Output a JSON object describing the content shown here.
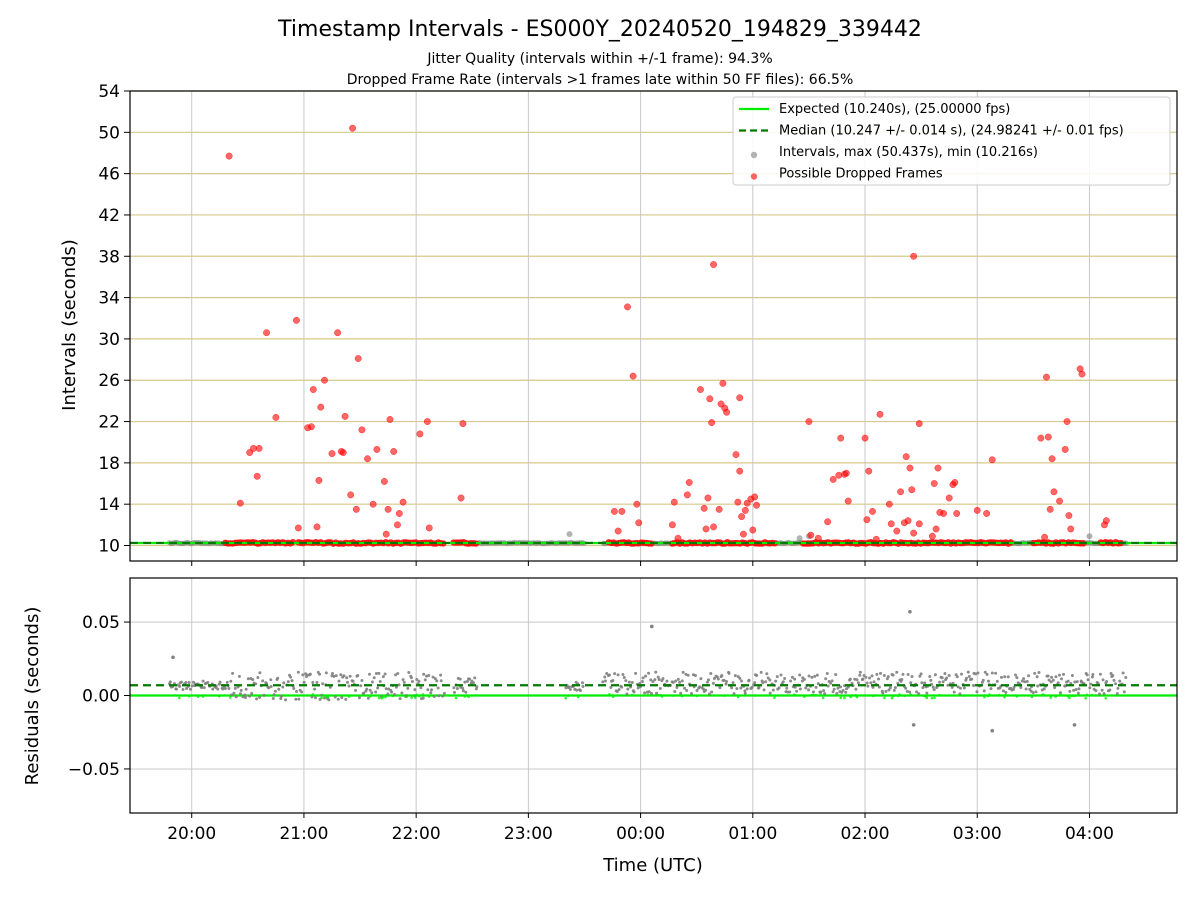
{
  "title": "Timestamp Intervals - ES000Y_20240520_194829_339442",
  "subtitle_1": "Jitter Quality (intervals within +/-1 frame): 94.3%",
  "subtitle_2": "Dropped Frame Rate (intervals >1 frames late within 50 FF files): 66.5%",
  "colors": {
    "expected": "#00ee00",
    "median": "#007a00",
    "intervals": "#808080",
    "dropped": "#ff0000",
    "hgrid_top": "#d8c88a",
    "grid": "#c8c8c8"
  },
  "chart_data": [
    {
      "type": "scatter",
      "panel": "intervals",
      "ylabel": "Intervals (seconds)",
      "xlabel": "",
      "ylim": [
        8.5,
        54
      ],
      "yticks": [
        "10",
        "14",
        "18",
        "22",
        "26",
        "30",
        "34",
        "38",
        "42",
        "46",
        "50",
        "54"
      ],
      "xticks": [
        "20:00",
        "21:00",
        "22:00",
        "23:00",
        "00:00",
        "01:00",
        "02:00",
        "03:00",
        "04:00"
      ],
      "xlim_hours": [
        19.45,
        28.78
      ],
      "grid": "horizontal (tan) and vertical (grey)",
      "legend_position": "top-right",
      "legend": [
        "Expected (10.240s), (25.00000 fps)",
        "Median (10.247 +/- 0.014 s), (24.98241 +/- 0.01 fps)",
        "Intervals, max (50.437s), min (10.216s)",
        "Possible Dropped Frames"
      ],
      "series": [
        {
          "name": "Expected (10.240s), (25.00000 fps)",
          "kind": "hline",
          "value": 10.24
        },
        {
          "name": "Median (10.247 +/- 0.014 s), (24.98241 +/- 0.01 fps)",
          "kind": "hline-dashed",
          "value": 10.247
        },
        {
          "name": "Intervals, max (50.437s), min (10.216s)",
          "kind": "baseline-scatter",
          "segments": [
            {
              "from": "19:48",
              "to": "20:20"
            },
            {
              "from": "22:30",
              "to": "23:30"
            },
            {
              "from": "23:40",
              "to": "04:20"
            }
          ],
          "extra_points": [
            {
              "t": "23:22",
              "y": 11.1
            },
            {
              "t": "01:25",
              "y": 10.7
            },
            {
              "t": "01:30",
              "y": 10.9
            },
            {
              "t": "04:00",
              "y": 10.9
            }
          ]
        },
        {
          "name": "Possible Dropped Frames",
          "kind": "scatter",
          "baseline_segments": [
            {
              "from": "20:18",
              "to": "20:55",
              "y": 10.25
            },
            {
              "from": "20:57",
              "to": "22:15",
              "y": 10.25
            },
            {
              "from": "22:20",
              "to": "22:33",
              "y": 10.25
            },
            {
              "from": "23:43",
              "to": "00:06",
              "y": 10.25
            },
            {
              "from": "00:17",
              "to": "01:12",
              "y": 10.25
            },
            {
              "from": "01:27",
              "to": "03:18",
              "y": 10.25
            },
            {
              "from": "03:30",
              "to": "03:58",
              "y": 10.25
            },
            {
              "from": "04:06",
              "to": "04:18",
              "y": 10.25
            }
          ],
          "points": [
            {
              "t": "20:20",
              "y": 47.7
            },
            {
              "t": "20:26",
              "y": 14.1
            },
            {
              "t": "20:31",
              "y": 19.0
            },
            {
              "t": "20:33",
              "y": 19.4
            },
            {
              "t": "20:35",
              "y": 16.7
            },
            {
              "t": "20:36",
              "y": 19.4
            },
            {
              "t": "20:40",
              "y": 30.6
            },
            {
              "t": "20:45",
              "y": 22.4
            },
            {
              "t": "20:56",
              "y": 31.8
            },
            {
              "t": "20:57",
              "y": 11.7
            },
            {
              "t": "21:02",
              "y": 21.4
            },
            {
              "t": "21:04",
              "y": 21.5
            },
            {
              "t": "21:05",
              "y": 25.1
            },
            {
              "t": "21:07",
              "y": 11.8
            },
            {
              "t": "21:08",
              "y": 16.3
            },
            {
              "t": "21:09",
              "y": 23.4
            },
            {
              "t": "21:11",
              "y": 26.0
            },
            {
              "t": "21:15",
              "y": 18.9
            },
            {
              "t": "21:18",
              "y": 30.6
            },
            {
              "t": "21:20",
              "y": 19.1
            },
            {
              "t": "21:21",
              "y": 19.0
            },
            {
              "t": "21:22",
              "y": 22.5
            },
            {
              "t": "21:25",
              "y": 14.9
            },
            {
              "t": "21:26",
              "y": 50.4
            },
            {
              "t": "21:28",
              "y": 13.5
            },
            {
              "t": "21:29",
              "y": 28.1
            },
            {
              "t": "21:31",
              "y": 21.2
            },
            {
              "t": "21:34",
              "y": 18.4
            },
            {
              "t": "21:37",
              "y": 14.0
            },
            {
              "t": "21:39",
              "y": 19.3
            },
            {
              "t": "21:43",
              "y": 16.2
            },
            {
              "t": "21:44",
              "y": 11.1
            },
            {
              "t": "21:45",
              "y": 13.5
            },
            {
              "t": "21:46",
              "y": 22.2
            },
            {
              "t": "21:48",
              "y": 19.1
            },
            {
              "t": "21:50",
              "y": 12.0
            },
            {
              "t": "21:51",
              "y": 13.1
            },
            {
              "t": "21:53",
              "y": 14.2
            },
            {
              "t": "22:02",
              "y": 20.8
            },
            {
              "t": "22:06",
              "y": 22.0
            },
            {
              "t": "22:07",
              "y": 11.7
            },
            {
              "t": "22:24",
              "y": 14.6
            },
            {
              "t": "22:25",
              "y": 21.8
            },
            {
              "t": "23:46",
              "y": 13.3
            },
            {
              "t": "23:48",
              "y": 11.4
            },
            {
              "t": "23:50",
              "y": 13.3
            },
            {
              "t": "23:53",
              "y": 33.1
            },
            {
              "t": "23:56",
              "y": 26.4
            },
            {
              "t": "23:58",
              "y": 14.0
            },
            {
              "t": "23:59",
              "y": 12.2
            },
            {
              "t": "00:17",
              "y": 12.0
            },
            {
              "t": "00:18",
              "y": 14.2
            },
            {
              "t": "00:20",
              "y": 10.7
            },
            {
              "t": "00:25",
              "y": 14.9
            },
            {
              "t": "00:26",
              "y": 16.1
            },
            {
              "t": "00:32",
              "y": 25.1
            },
            {
              "t": "00:34",
              "y": 13.6
            },
            {
              "t": "00:35",
              "y": 11.6
            },
            {
              "t": "00:36",
              "y": 14.6
            },
            {
              "t": "00:37",
              "y": 24.2
            },
            {
              "t": "00:38",
              "y": 21.9
            },
            {
              "t": "00:39",
              "y": 37.2
            },
            {
              "t": "00:39",
              "y": 11.8
            },
            {
              "t": "00:42",
              "y": 13.5
            },
            {
              "t": "00:43",
              "y": 23.7
            },
            {
              "t": "00:44",
              "y": 25.7
            },
            {
              "t": "00:45",
              "y": 23.3
            },
            {
              "t": "00:46",
              "y": 22.9
            },
            {
              "t": "00:51",
              "y": 18.8
            },
            {
              "t": "00:52",
              "y": 14.2
            },
            {
              "t": "00:53",
              "y": 24.3
            },
            {
              "t": "00:53",
              "y": 17.2
            },
            {
              "t": "00:54",
              "y": 12.8
            },
            {
              "t": "00:55",
              "y": 11.1
            },
            {
              "t": "00:56",
              "y": 13.4
            },
            {
              "t": "00:57",
              "y": 14.1
            },
            {
              "t": "00:59",
              "y": 14.5
            },
            {
              "t": "01:00",
              "y": 11.5
            },
            {
              "t": "01:01",
              "y": 14.7
            },
            {
              "t": "01:02",
              "y": 13.9
            },
            {
              "t": "01:30",
              "y": 22.0
            },
            {
              "t": "01:31",
              "y": 11.0
            },
            {
              "t": "01:35",
              "y": 10.7
            },
            {
              "t": "01:40",
              "y": 12.3
            },
            {
              "t": "01:43",
              "y": 16.4
            },
            {
              "t": "01:46",
              "y": 16.8
            },
            {
              "t": "01:47",
              "y": 20.4
            },
            {
              "t": "01:49",
              "y": 16.9
            },
            {
              "t": "01:50",
              "y": 17.0
            },
            {
              "t": "01:51",
              "y": 14.3
            },
            {
              "t": "02:00",
              "y": 20.4
            },
            {
              "t": "02:01",
              "y": 12.5
            },
            {
              "t": "02:02",
              "y": 17.2
            },
            {
              "t": "02:04",
              "y": 13.3
            },
            {
              "t": "02:06",
              "y": 10.6
            },
            {
              "t": "02:08",
              "y": 22.7
            },
            {
              "t": "02:13",
              "y": 14.0
            },
            {
              "t": "02:14",
              "y": 12.1
            },
            {
              "t": "02:17",
              "y": 11.4
            },
            {
              "t": "02:19",
              "y": 15.2
            },
            {
              "t": "02:21",
              "y": 12.2
            },
            {
              "t": "02:22",
              "y": 18.6
            },
            {
              "t": "02:23",
              "y": 12.4
            },
            {
              "t": "02:24",
              "y": 17.5
            },
            {
              "t": "02:25",
              "y": 15.4
            },
            {
              "t": "02:26",
              "y": 38.0
            },
            {
              "t": "02:26",
              "y": 11.2
            },
            {
              "t": "02:29",
              "y": 21.8
            },
            {
              "t": "02:29",
              "y": 12.1
            },
            {
              "t": "02:36",
              "y": 10.9
            },
            {
              "t": "02:37",
              "y": 16.0
            },
            {
              "t": "02:38",
              "y": 11.6
            },
            {
              "t": "02:39",
              "y": 17.5
            },
            {
              "t": "02:40",
              "y": 13.2
            },
            {
              "t": "02:42",
              "y": 13.1
            },
            {
              "t": "02:45",
              "y": 14.6
            },
            {
              "t": "02:47",
              "y": 15.9
            },
            {
              "t": "02:48",
              "y": 16.1
            },
            {
              "t": "02:49",
              "y": 13.1
            },
            {
              "t": "03:00",
              "y": 13.4
            },
            {
              "t": "03:05",
              "y": 13.1
            },
            {
              "t": "03:08",
              "y": 18.3
            },
            {
              "t": "03:34",
              "y": 20.4
            },
            {
              "t": "03:36",
              "y": 10.8
            },
            {
              "t": "03:37",
              "y": 26.3
            },
            {
              "t": "03:38",
              "y": 20.5
            },
            {
              "t": "03:39",
              "y": 13.5
            },
            {
              "t": "03:40",
              "y": 18.4
            },
            {
              "t": "03:41",
              "y": 15.2
            },
            {
              "t": "03:44",
              "y": 14.3
            },
            {
              "t": "03:47",
              "y": 19.3
            },
            {
              "t": "03:48",
              "y": 22.0
            },
            {
              "t": "03:49",
              "y": 12.9
            },
            {
              "t": "03:50",
              "y": 11.6
            },
            {
              "t": "03:55",
              "y": 27.1
            },
            {
              "t": "03:56",
              "y": 26.6
            },
            {
              "t": "04:08",
              "y": 12.0
            },
            {
              "t": "04:09",
              "y": 12.4
            }
          ]
        }
      ]
    },
    {
      "type": "scatter",
      "panel": "residuals",
      "ylabel": "Residuals (seconds)",
      "xlabel": "Time (UTC)",
      "ylim": [
        -0.08,
        0.08
      ],
      "yticks": [
        "0.05",
        "0.00",
        "−0.05"
      ],
      "ytick_values": [
        0.05,
        0.0,
        -0.05
      ],
      "xticks": [
        "20:00",
        "21:00",
        "22:00",
        "23:00",
        "00:00",
        "01:00",
        "02:00",
        "03:00",
        "04:00"
      ],
      "xlim_hours": [
        19.45,
        28.78
      ],
      "grid": "horizontal and vertical (grey)",
      "series": [
        {
          "name": "Expected (10.240s), (25.00000 fps)",
          "kind": "hline",
          "value": 0.0
        },
        {
          "name": "Median (10.247 +/- 0.014 s), (24.98241 +/- 0.01 fps)",
          "kind": "hline-dashed",
          "value": 0.007
        },
        {
          "name": "Intervals, max (50.437s), min (10.216s)",
          "kind": "residual-bands",
          "bands": [
            {
              "from": "19:48",
              "to": "20:20",
              "low": 0.004,
              "high": 0.01
            },
            {
              "from": "20:20",
              "to": "22:15",
              "low": -0.003,
              "high": 0.016
            },
            {
              "from": "22:20",
              "to": "22:33",
              "low": 0.002,
              "high": 0.012
            },
            {
              "from": "23:20",
              "to": "23:30",
              "low": 0.003,
              "high": 0.009
            },
            {
              "from": "23:40",
              "to": "04:20",
              "low": 0.001,
              "high": 0.016
            }
          ],
          "outliers": [
            {
              "t": "19:50",
              "y": 0.026
            },
            {
              "t": "00:06",
              "y": 0.047
            },
            {
              "t": "02:24",
              "y": 0.057
            },
            {
              "t": "02:26",
              "y": -0.02
            },
            {
              "t": "03:08",
              "y": -0.024
            },
            {
              "t": "03:52",
              "y": -0.02
            }
          ]
        }
      ]
    }
  ]
}
